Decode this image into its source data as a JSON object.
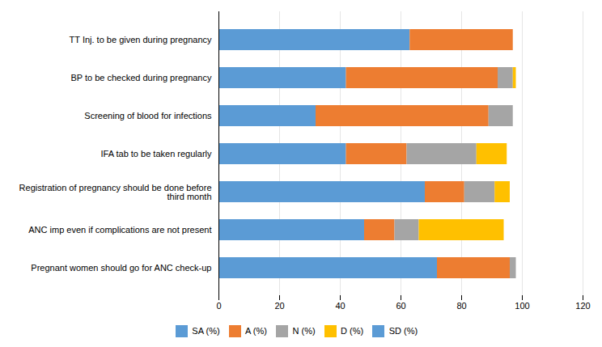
{
  "chart_data": {
    "type": "bar",
    "orientation": "horizontal",
    "stacked": true,
    "categories": [
      "TT Inj. to be given during pregnancy",
      "BP to be checked during pregnancy",
      "Screening of blood for infections",
      "IFA tab to be taken regularly",
      "Registration of pregnancy should be done before\nthird month",
      "ANC imp even if complications are not present",
      "Pregnant women should go for ANC check-up"
    ],
    "series": [
      {
        "name": "SA (%)",
        "color": "#5B9BD5",
        "values": [
          63,
          42,
          32,
          42,
          68,
          48,
          72
        ]
      },
      {
        "name": "A (%)",
        "color": "#ED7D31",
        "values": [
          34,
          50,
          57,
          20,
          13,
          10,
          24
        ]
      },
      {
        "name": "N (%)",
        "color": "#A5A5A5",
        "values": [
          0,
          5,
          8,
          23,
          10,
          8,
          2
        ]
      },
      {
        "name": "D (%)",
        "color": "#FFC000",
        "values": [
          0,
          1,
          0,
          10,
          5,
          28,
          0
        ]
      },
      {
        "name": "SD (%)",
        "color": "#5B9BD5",
        "values": [
          0,
          0,
          0,
          0,
          0,
          0,
          0
        ]
      }
    ],
    "xlim": [
      0,
      120
    ],
    "xticks": [
      0,
      20,
      40,
      60,
      80,
      100,
      120
    ],
    "grid": true,
    "legend": "bottom"
  }
}
